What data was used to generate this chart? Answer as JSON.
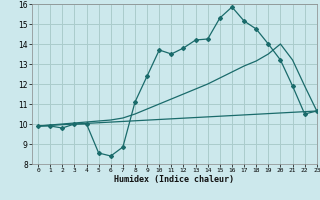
{
  "bg_color": "#cce8ec",
  "grid_color": "#aacccc",
  "line_color": "#1a6b6b",
  "xlabel": "Humidex (Indice chaleur)",
  "xlim": [
    -0.5,
    23
  ],
  "ylim": [
    8,
    16
  ],
  "yticks": [
    8,
    9,
    10,
    11,
    12,
    13,
    14,
    15,
    16
  ],
  "xticks": [
    0,
    1,
    2,
    3,
    4,
    5,
    6,
    7,
    8,
    9,
    10,
    11,
    12,
    13,
    14,
    15,
    16,
    17,
    18,
    19,
    20,
    21,
    22,
    23
  ],
  "line1_x": [
    0,
    1,
    2,
    3,
    4,
    5,
    6,
    7,
    8,
    9,
    10,
    11,
    12,
    13,
    14,
    15,
    16,
    17,
    18,
    19,
    20,
    21,
    22,
    23
  ],
  "line1_y": [
    9.9,
    9.9,
    9.8,
    10.0,
    10.0,
    8.55,
    8.4,
    8.85,
    11.1,
    12.4,
    13.7,
    13.5,
    13.8,
    14.2,
    14.25,
    15.3,
    15.85,
    15.15,
    14.75,
    14.0,
    13.2,
    11.9,
    10.5,
    10.65
  ],
  "line2_x": [
    0,
    23
  ],
  "line2_y": [
    9.9,
    10.65
  ],
  "line3_x": [
    0,
    1,
    2,
    3,
    4,
    5,
    6,
    7,
    8,
    9,
    10,
    11,
    12,
    13,
    14,
    15,
    16,
    17,
    18,
    19,
    20,
    21,
    22,
    23
  ],
  "line3_y": [
    9.9,
    9.95,
    10.0,
    10.05,
    10.1,
    10.15,
    10.2,
    10.3,
    10.5,
    10.75,
    11.0,
    11.25,
    11.5,
    11.75,
    12.0,
    12.3,
    12.6,
    12.9,
    13.15,
    13.5,
    14.0,
    13.2,
    11.9,
    10.65
  ]
}
